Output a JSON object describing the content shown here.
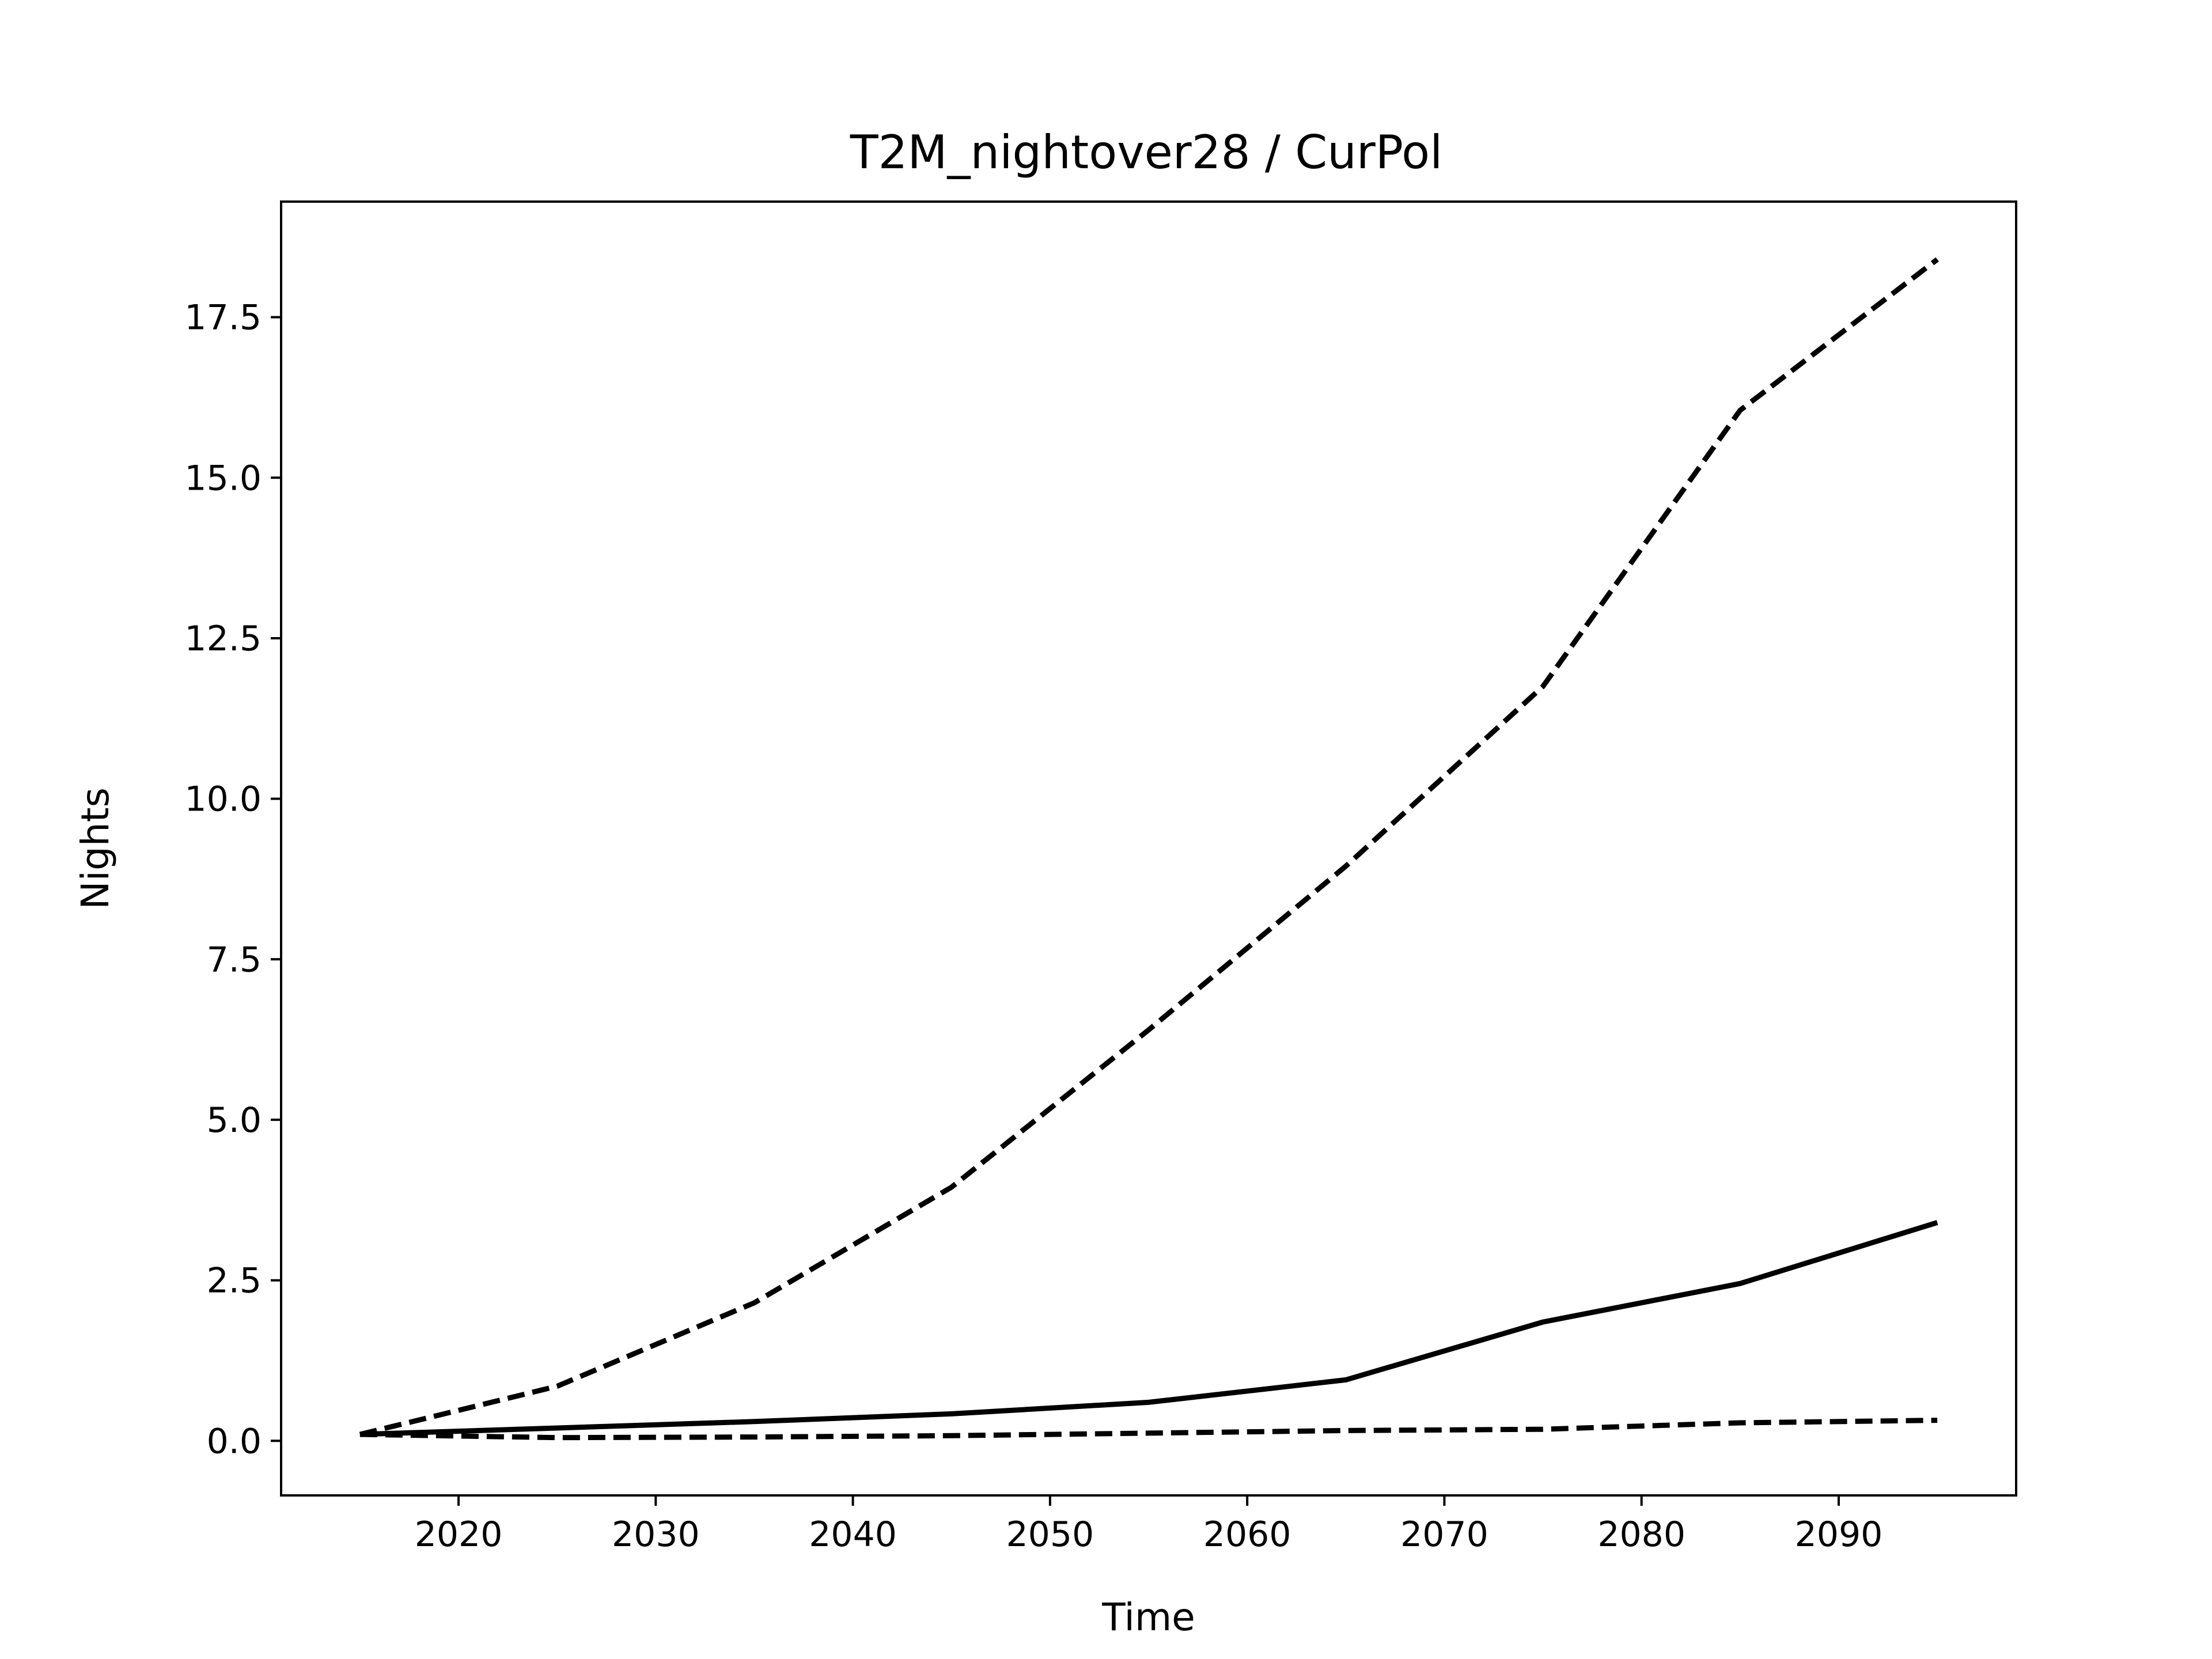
{
  "chart_data": {
    "type": "line",
    "title": "T2M_nightover28 / CurPol",
    "xlabel": "Time",
    "ylabel": "Nights",
    "xlim": [
      2011,
      2099
    ],
    "ylim": [
      -0.85,
      19.3
    ],
    "xticks": [
      2020,
      2030,
      2040,
      2050,
      2060,
      2070,
      2080,
      2090
    ],
    "xtick_labels": [
      "2020",
      "2030",
      "2040",
      "2050",
      "2060",
      "2070",
      "2080",
      "2090"
    ],
    "yticks": [
      0.0,
      2.5,
      5.0,
      7.5,
      10.0,
      12.5,
      15.0,
      17.5
    ],
    "ytick_labels": [
      "0.0",
      "2.5",
      "5.0",
      "7.5",
      "10.0",
      "12.5",
      "15.0",
      "17.5"
    ],
    "grid": false,
    "legend": "none",
    "line_color": "#000000",
    "x": [
      2015,
      2025,
      2035,
      2045,
      2055,
      2065,
      2075,
      2085,
      2095
    ],
    "series": [
      {
        "style": "dashed",
        "values": [
          0.1,
          0.85,
          2.15,
          3.95,
          6.4,
          8.95,
          11.75,
          16.05,
          18.4
        ]
      },
      {
        "style": "solid",
        "values": [
          0.1,
          0.2,
          0.3,
          0.42,
          0.6,
          0.95,
          1.85,
          2.45,
          3.4
        ]
      },
      {
        "style": "dashed",
        "values": [
          0.1,
          0.05,
          0.06,
          0.08,
          0.12,
          0.16,
          0.18,
          0.28,
          0.32
        ]
      }
    ]
  }
}
